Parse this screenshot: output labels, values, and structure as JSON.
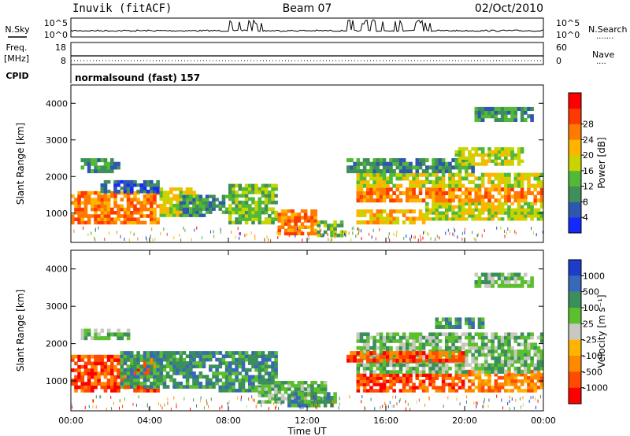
{
  "header": {
    "station": "Inuvik (fitACF)",
    "beam": "Beam 07",
    "date": "02/Oct/2010"
  },
  "noise_panel": {
    "left_label": "N.Sky",
    "right_label": "N.Search",
    "right_dots": "·······",
    "left_ticks": [
      "10^5",
      "10^0"
    ],
    "right_ticks": [
      "10^5",
      "10^0"
    ]
  },
  "freq_panel": {
    "left_label_1": "Freq.",
    "left_label_2": "[MHz]",
    "right_label": "Nave",
    "right_dots": "····",
    "left_ticks": [
      "18",
      "8"
    ],
    "right_ticks": [
      "60",
      "0"
    ]
  },
  "cpid_panel": {
    "label": "CPID",
    "text": "normalsound (fast) 157"
  },
  "axes": {
    "xlabel": "Time UT",
    "ylabel": "Slant Range [km]"
  },
  "colors": {
    "power": [
      "#1428ff",
      "#2f57b0",
      "#3f8f5a",
      "#52b838",
      "#c9d400",
      "#ffb400",
      "#ff7a00",
      "#ff3a00",
      "#ff0000"
    ],
    "velocity": [
      "#1e3cc8",
      "#3868b8",
      "#3b8f5a",
      "#5bbf2e",
      "#c8c8c0",
      "#ffb400",
      "#ff8a00",
      "#ff4a00",
      "#ff0000"
    ]
  },
  "chart_data": [
    {
      "type": "heatmap",
      "panel": "power",
      "x": [
        "00:00",
        "04:00",
        "08:00",
        "12:00",
        "16:00",
        "20:00",
        "00:00"
      ],
      "y_ticks": [
        1000,
        2000,
        3000,
        4000
      ],
      "ylim": [
        200,
        4500
      ],
      "colorbar_label": "Power [dB]",
      "colorbar_ticks": [
        "4",
        "8",
        "12",
        "16",
        "20",
        "24",
        "28"
      ],
      "regions": [
        {
          "t": [
            0.0,
            4.5
          ],
          "r": [
            700,
            1600
          ],
          "v": 28
        },
        {
          "t": [
            1.5,
            4.5
          ],
          "r": [
            1550,
            1900
          ],
          "v": 8
        },
        {
          "t": [
            0.5,
            2.5
          ],
          "r": [
            2100,
            2500
          ],
          "v": 12
        },
        {
          "t": [
            4.5,
            6.5
          ],
          "r": [
            900,
            1700
          ],
          "v": 20
        },
        {
          "t": [
            5.5,
            8.0
          ],
          "r": [
            900,
            1500
          ],
          "v": 12
        },
        {
          "t": [
            8.0,
            10.5
          ],
          "r": [
            700,
            1800
          ],
          "v": 16
        },
        {
          "t": [
            10.5,
            12.5
          ],
          "r": [
            400,
            1100
          ],
          "v": 28
        },
        {
          "t": [
            12.5,
            14.0
          ],
          "r": [
            350,
            800
          ],
          "v": 16
        },
        {
          "t": [
            14.5,
            18.0
          ],
          "r": [
            700,
            1100
          ],
          "v": 24
        },
        {
          "t": [
            18.0,
            24.0
          ],
          "r": [
            800,
            1300
          ],
          "v": 20
        },
        {
          "t": [
            14.5,
            24.0
          ],
          "r": [
            1300,
            1700
          ],
          "v": 28
        },
        {
          "t": [
            14.5,
            24.0
          ],
          "r": [
            1700,
            2100
          ],
          "v": 20
        },
        {
          "t": [
            14.0,
            20.5
          ],
          "r": [
            2100,
            2500
          ],
          "v": 12
        },
        {
          "t": [
            19.5,
            23.0
          ],
          "r": [
            2300,
            2800
          ],
          "v": 20
        },
        {
          "t": [
            20.5,
            23.5
          ],
          "r": [
            3500,
            3900
          ],
          "v": 12
        }
      ]
    },
    {
      "type": "heatmap",
      "panel": "velocity",
      "x": [
        "00:00",
        "04:00",
        "08:00",
        "12:00",
        "16:00",
        "20:00",
        "00:00"
      ],
      "y_ticks": [
        1000,
        2000,
        3000,
        4000
      ],
      "ylim": [
        200,
        4500
      ],
      "colorbar_label": "Velocity [m s⁻¹]",
      "colorbar_ticks": [
        "1000",
        "500",
        "100",
        "25",
        "-25",
        "-100",
        "-500",
        "-1000"
      ],
      "regions": [
        {
          "t": [
            0.0,
            4.5
          ],
          "r": [
            700,
            1700
          ],
          "v": -500
        },
        {
          "t": [
            2.5,
            7.5
          ],
          "r": [
            800,
            1800
          ],
          "v": 100
        },
        {
          "t": [
            0.5,
            3.0
          ],
          "r": [
            2100,
            2400
          ],
          "v": 25
        },
        {
          "t": [
            7.5,
            10.5
          ],
          "r": [
            700,
            1800
          ],
          "v": 100
        },
        {
          "t": [
            9.5,
            13.0
          ],
          "r": [
            400,
            1000
          ],
          "v": 25
        },
        {
          "t": [
            11.0,
            13.5
          ],
          "r": [
            300,
            700
          ],
          "v": 100
        },
        {
          "t": [
            14.5,
            20.0
          ],
          "r": [
            700,
            1200
          ],
          "v": -500
        },
        {
          "t": [
            20.0,
            24.0
          ],
          "r": [
            700,
            1300
          ],
          "v": -100
        },
        {
          "t": [
            14.5,
            24.0
          ],
          "r": [
            1200,
            2300
          ],
          "v": 25
        },
        {
          "t": [
            14.0,
            20.0
          ],
          "r": [
            1500,
            1800
          ],
          "v": -500
        },
        {
          "t": [
            18.5,
            21.0
          ],
          "r": [
            2400,
            2700
          ],
          "v": 100
        },
        {
          "t": [
            20.5,
            23.5
          ],
          "r": [
            3500,
            3900
          ],
          "v": 25
        }
      ]
    }
  ]
}
